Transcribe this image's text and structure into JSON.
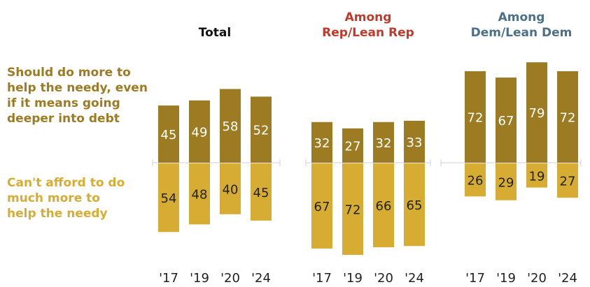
{
  "legend": {
    "more_label": "Should do more to help the needy, even if it means going deeper into debt",
    "less_label": "Can't afford to do much more to help the needy"
  },
  "colors": {
    "more": "#9c7b22",
    "less": "#d6ad32",
    "total_title": "#111111",
    "rep_title": "#c0392b",
    "dem_title": "#4d7088",
    "baseline": "#d0d0d0"
  },
  "chart_data": [
    {
      "type": "bar",
      "title": "Total",
      "categories": [
        "'17",
        "'19",
        "'20",
        "'24"
      ],
      "series": [
        {
          "name": "Should do more to help the needy, even if it means going deeper into debt",
          "values": [
            45,
            49,
            58,
            52
          ]
        },
        {
          "name": "Can't afford to do much more to help the needy",
          "values": [
            54,
            48,
            40,
            45
          ]
        }
      ]
    },
    {
      "type": "bar",
      "title": "Among Rep/Lean Rep",
      "categories": [
        "'17",
        "'19",
        "'20",
        "'24"
      ],
      "series": [
        {
          "name": "Should do more to help the needy, even if it means going deeper into debt",
          "values": [
            32,
            27,
            32,
            33
          ]
        },
        {
          "name": "Can't afford to do much more to help the needy",
          "values": [
            67,
            72,
            66,
            65
          ]
        }
      ]
    },
    {
      "type": "bar",
      "title": "Among Dem/Lean Dem",
      "categories": [
        "'17",
        "'19",
        "'20",
        "'24"
      ],
      "series": [
        {
          "name": "Should do more to help the needy, even if it means going deeper into debt",
          "values": [
            72,
            67,
            79,
            72
          ]
        },
        {
          "name": "Can't afford to do much more to help the needy",
          "values": [
            26,
            29,
            19,
            27
          ]
        }
      ]
    }
  ]
}
